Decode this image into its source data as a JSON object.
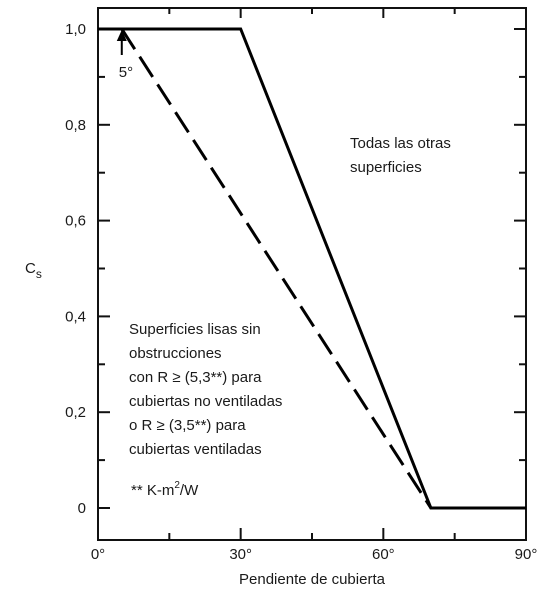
{
  "chart_data": {
    "type": "line",
    "xlabel": "Pendiente de cubierta",
    "ylabel": "C",
    "ylabel_sub": "s",
    "xlim": [
      0,
      90
    ],
    "ylim": [
      0,
      1.0
    ],
    "x_ticks": [
      {
        "value": 0,
        "label": "0°"
      },
      {
        "value": 30,
        "label": "30°"
      },
      {
        "value": 60,
        "label": "60°"
      },
      {
        "value": 90,
        "label": "90°"
      }
    ],
    "y_ticks": [
      {
        "value": 0,
        "label": "0"
      },
      {
        "value": 0.2,
        "label": "0,2"
      },
      {
        "value": 0.4,
        "label": "0,4"
      },
      {
        "value": 0.6,
        "label": "0,6"
      },
      {
        "value": 0.8,
        "label": "0,8"
      },
      {
        "value": 1.0,
        "label": "1,0"
      }
    ],
    "grid": false,
    "series": [
      {
        "style": "solid",
        "points": [
          [
            0,
            1.0
          ],
          [
            30,
            1.0
          ],
          [
            70,
            0
          ],
          [
            90,
            0
          ]
        ]
      },
      {
        "style": "dashed",
        "points": [
          [
            5,
            1.0
          ],
          [
            70,
            0
          ]
        ]
      }
    ],
    "annotations": [
      {
        "id": "arrow-5deg",
        "text": "5°",
        "x": 5,
        "y": 1.0
      },
      {
        "id": "other-surfaces",
        "lines": [
          "Todas las otras",
          "superficies"
        ]
      },
      {
        "id": "smooth-surfaces",
        "lines": [
          "Superficies lisas sin",
          "obstrucciones",
          "con  R ≥ (5,3**) para",
          "cubiertas no ventiladas",
          "o  R ≥ (3,5**) para",
          "cubiertas ventiladas"
        ]
      },
      {
        "id": "units-note",
        "text": "** K-m",
        "sup": "2",
        "suffix": "/W"
      }
    ]
  }
}
